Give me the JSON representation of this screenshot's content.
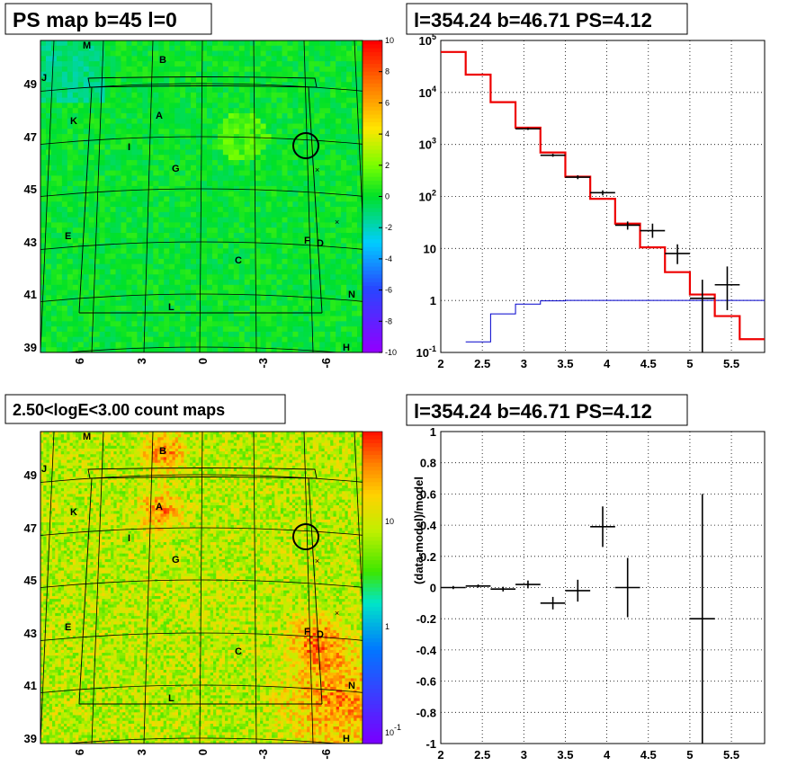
{
  "chart_data": [
    {
      "type": "heatmap",
      "title": "PS map b=45 l=0",
      "x_ticks": [
        "6",
        "3",
        "0",
        "-3",
        "-6"
      ],
      "y_ticks": [
        "49",
        "47",
        "45",
        "43",
        "41",
        "39"
      ],
      "color_scale": {
        "min": -10,
        "max": 10,
        "ticks": [
          "10",
          "8",
          "6",
          "4",
          "2",
          "0",
          "-2",
          "-4",
          "-6",
          "-8",
          "-10"
        ]
      },
      "labels": [
        "M",
        "B",
        "J",
        "A",
        "K",
        "I",
        "G",
        "E",
        "C",
        "F",
        "D",
        "N",
        "L",
        "H"
      ]
    },
    {
      "type": "line",
      "title": "l=354.24 b=46.71 PS=4.12",
      "y_scale": "log",
      "xlim": [
        2,
        5.9
      ],
      "ylim": [
        0.1,
        100000
      ],
      "x_ticks": [
        "2",
        "2.5",
        "3",
        "3.5",
        "4",
        "4.5",
        "5",
        "5.5"
      ],
      "y_ticks": [
        {
          "base": "10",
          "exp": "5"
        },
        {
          "base": "10",
          "exp": "4"
        },
        {
          "base": "10",
          "exp": "3"
        },
        {
          "base": "10",
          "exp": "2"
        },
        {
          "base": "10",
          "exp": ""
        },
        {
          "base": "1",
          "exp": ""
        },
        {
          "base": "10",
          "exp": "-1"
        }
      ],
      "data_points": [
        {
          "x": 3.05,
          "y": 2000,
          "xerr": 0.15,
          "ylo": 1900,
          "yhi": 2100
        },
        {
          "x": 3.35,
          "y": 620,
          "xerr": 0.15,
          "ylo": 580,
          "yhi": 660
        },
        {
          "x": 3.65,
          "y": 235,
          "xerr": 0.15,
          "ylo": 215,
          "yhi": 255
        },
        {
          "x": 3.95,
          "y": 118,
          "xerr": 0.15,
          "ylo": 105,
          "yhi": 131
        },
        {
          "x": 4.25,
          "y": 28,
          "xerr": 0.15,
          "ylo": 23,
          "yhi": 33
        },
        {
          "x": 4.55,
          "y": 22,
          "xerr": 0.15,
          "ylo": 16,
          "yhi": 30
        },
        {
          "x": 4.85,
          "y": 8,
          "xerr": 0.15,
          "ylo": 5,
          "yhi": 12
        },
        {
          "x": 5.15,
          "y": 1.1,
          "xerr": 0.15,
          "ylo": 0.1,
          "yhi": 2.5
        },
        {
          "x": 5.45,
          "y": 2,
          "xerr": 0.15,
          "ylo": 0.65,
          "yhi": 4.5
        }
      ],
      "model_total": {
        "edges": [
          2,
          2.3,
          2.6,
          2.9,
          3.2,
          3.5,
          3.8,
          4.1,
          4.4,
          4.7,
          5.0,
          5.3,
          5.6,
          5.9
        ],
        "values": [
          60000,
          22000,
          6500,
          2100,
          700,
          240,
          90,
          30,
          10.5,
          3.5,
          1.3,
          0.5,
          0.18
        ]
      },
      "model_source": {
        "edges": [
          2.3,
          2.6,
          2.9,
          3.2,
          3.5,
          3.8,
          4.1,
          4.4,
          4.7,
          5.0,
          5.3,
          5.6,
          5.9
        ],
        "values": [
          0.16,
          0.55,
          0.85,
          0.98,
          1,
          1,
          1,
          1,
          1,
          1,
          1,
          1
        ]
      }
    },
    {
      "type": "heatmap",
      "title": "2.50<logE<3.00 count maps",
      "x_ticks": [
        "6",
        "3",
        "0",
        "-3",
        "-6"
      ],
      "y_ticks": [
        "49",
        "47",
        "45",
        "43",
        "41",
        "39"
      ],
      "color_scale": {
        "scale": "log",
        "ticks": [
          {
            "base": "10",
            "exp": ""
          },
          {
            "base": "1",
            "exp": ""
          },
          {
            "base": "10",
            "exp": "-1"
          }
        ]
      },
      "labels": [
        "M",
        "B",
        "J",
        "A",
        "K",
        "I",
        "G",
        "E",
        "C",
        "F",
        "D",
        "N",
        "L",
        "H"
      ]
    },
    {
      "type": "scatter",
      "title": "l=354.24 b=46.71 PS=4.12",
      "ylabel": "(data-model)/model",
      "xlim": [
        2,
        5.9
      ],
      "ylim": [
        -1,
        1
      ],
      "x_ticks": [
        "2",
        "2.5",
        "3",
        "3.5",
        "4",
        "4.5",
        "5",
        "5.5"
      ],
      "y_ticks": [
        "1",
        "0.8",
        "0.6",
        "0.4",
        "0.2",
        "0",
        "-0.2",
        "-0.4",
        "-0.6",
        "-0.8",
        "-1"
      ],
      "points": [
        {
          "x": 2.15,
          "y": 0.0,
          "xerr": 0.15,
          "yerr": 0.01
        },
        {
          "x": 2.45,
          "y": 0.01,
          "xerr": 0.15,
          "yerr": 0.01
        },
        {
          "x": 2.75,
          "y": -0.01,
          "xerr": 0.15,
          "yerr": 0.015
        },
        {
          "x": 3.05,
          "y": 0.02,
          "xerr": 0.15,
          "yerr": 0.025
        },
        {
          "x": 3.35,
          "y": -0.1,
          "xerr": 0.15,
          "yerr": 0.04
        },
        {
          "x": 3.65,
          "y": -0.02,
          "xerr": 0.15,
          "yerr": 0.07
        },
        {
          "x": 3.95,
          "y": 0.39,
          "xerr": 0.15,
          "yerr": 0.13
        },
        {
          "x": 4.25,
          "y": 0.0,
          "xerr": 0.15,
          "yerr": 0.19
        },
        {
          "x": 5.15,
          "y": -0.2,
          "xerr": 0.15,
          "yerr": 0.8
        }
      ]
    }
  ]
}
